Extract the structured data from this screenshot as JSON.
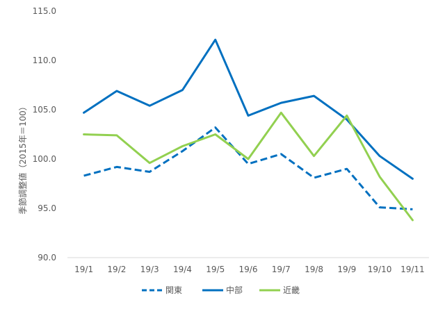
{
  "chart_data": {
    "type": "line",
    "title": "",
    "xlabel": "",
    "ylabel": "季節調整値（2015年＝100）",
    "categories": [
      "19/1",
      "19/2",
      "19/3",
      "19/4",
      "19/5",
      "19/6",
      "19/7",
      "19/8",
      "19/9",
      "19/10",
      "19/11"
    ],
    "ylim": [
      90,
      115
    ],
    "yticks": [
      "90.0",
      "95.0",
      "100.0",
      "105.0",
      "110.0",
      "115.0"
    ],
    "grid": false,
    "legend_position": "bottom",
    "series": [
      {
        "name": "関東",
        "color": "#0070C0",
        "dash": true,
        "values": [
          98.3,
          99.2,
          98.7,
          100.8,
          103.2,
          99.5,
          100.5,
          98.1,
          99.0,
          95.1,
          94.9
        ]
      },
      {
        "name": "中部",
        "color": "#0070C0",
        "dash": false,
        "values": [
          104.7,
          106.9,
          105.4,
          107.0,
          112.1,
          104.4,
          105.7,
          106.4,
          104.0,
          100.3,
          98.0
        ]
      },
      {
        "name": "近畿",
        "color": "#92D050",
        "dash": false,
        "values": [
          102.5,
          102.4,
          99.6,
          101.3,
          102.5,
          100.0,
          104.7,
          100.3,
          104.4,
          98.2,
          93.8
        ]
      }
    ]
  }
}
